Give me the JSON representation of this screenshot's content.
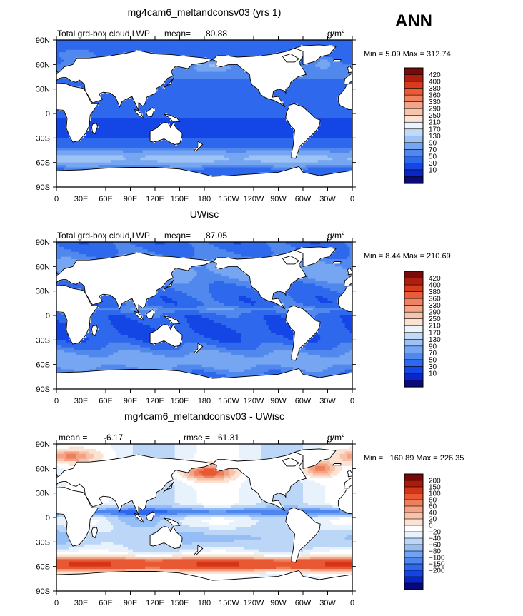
{
  "page": {
    "season_label": "ANN"
  },
  "palettes": {
    "abs": [
      "#0a0a7a",
      "#0a26c8",
      "#1446e6",
      "#2e68ec",
      "#5088ee",
      "#76a6f2",
      "#9cc2f6",
      "#c2daf8",
      "#ebf3fc",
      "#fbe3d4",
      "#f8c4ac",
      "#f4a488",
      "#ef8260",
      "#ea5c38",
      "#d83a1c",
      "#b01e10",
      "#7a0a0a"
    ],
    "diff": [
      "#08087a",
      "#0a24c8",
      "#1444e6",
      "#2e66ec",
      "#4e86ee",
      "#72a2f2",
      "#96bef6",
      "#bcd6f8",
      "#e8f2fc",
      "#ffffff",
      "#fbe2d2",
      "#f8c2a8",
      "#f4a286",
      "#ef7e5c",
      "#e85832",
      "#d43418",
      "#ac1a0c",
      "#780808"
    ]
  },
  "chart_data": [
    {
      "type": "heatmap",
      "title": "mg4cam6_meltandconsv03 (yrs 1)",
      "left_label": "Total grd-box cloud LWP",
      "mean_label": "mean=",
      "mean_value": "80.88",
      "units": "g/m",
      "units_sup": "2",
      "stats": "Min =    5.09  Max =  312.74",
      "x_ticks": [
        "0",
        "30E",
        "60E",
        "90E",
        "120E",
        "150E",
        "180",
        "150W",
        "120W",
        "90W",
        "60W",
        "30W",
        "0"
      ],
      "y_ticks": [
        "90N",
        "60N",
        "30N",
        "0",
        "30S",
        "60S",
        "90S"
      ],
      "xlim": [
        0,
        360
      ],
      "ylim": [
        -90,
        90
      ],
      "colorbar_labels": [
        "420",
        "400",
        "380",
        "360",
        "330",
        "290",
        "250",
        "210",
        "170",
        "130",
        "90",
        "70",
        "50",
        "30",
        "10"
      ],
      "palette": "abs",
      "field": "p1"
    },
    {
      "type": "heatmap",
      "title": "UWisc",
      "left_label": "Total grd-box cloud LWP",
      "mean_label": "mean=",
      "mean_value": "87.05",
      "units": "g/m",
      "units_sup": "2",
      "stats": "Min =    8.44  Max =  210.69",
      "x_ticks": [
        "0",
        "30E",
        "60E",
        "90E",
        "120E",
        "150E",
        "180",
        "150W",
        "120W",
        "90W",
        "60W",
        "30W",
        "0"
      ],
      "y_ticks": [
        "90N",
        "60N",
        "30N",
        "0",
        "30S",
        "60S",
        "90S"
      ],
      "xlim": [
        0,
        360
      ],
      "ylim": [
        -90,
        90
      ],
      "colorbar_labels": [
        "420",
        "400",
        "380",
        "360",
        "330",
        "290",
        "250",
        "210",
        "170",
        "130",
        "90",
        "70",
        "50",
        "30",
        "10"
      ],
      "palette": "abs",
      "field": "p2"
    },
    {
      "type": "heatmap",
      "title": "mg4cam6_meltandconsv03 - UWisc",
      "left_label": "",
      "mean_label": "mean =",
      "mean_value": "-6.17",
      "rmse_label": "rmse =",
      "rmse_value": "61.31",
      "units": "g/m",
      "units_sup": "2",
      "stats": "Min = −160.89  Max =  226.35",
      "x_ticks": [
        "0",
        "30E",
        "60E",
        "90E",
        "120E",
        "150E",
        "180",
        "150W",
        "120W",
        "90W",
        "60W",
        "30W",
        "0"
      ],
      "y_ticks": [
        "90N",
        "60N",
        "30N",
        "0",
        "30S",
        "60S",
        "90S"
      ],
      "xlim": [
        0,
        360
      ],
      "ylim": [
        -90,
        90
      ],
      "colorbar_labels": [
        "200",
        "150",
        "100",
        "80",
        "60",
        "40",
        "20",
        "0",
        "−20",
        "−40",
        "−60",
        "−80",
        "−100",
        "−150",
        "−200"
      ],
      "palette": "diff",
      "field": "p3"
    }
  ]
}
